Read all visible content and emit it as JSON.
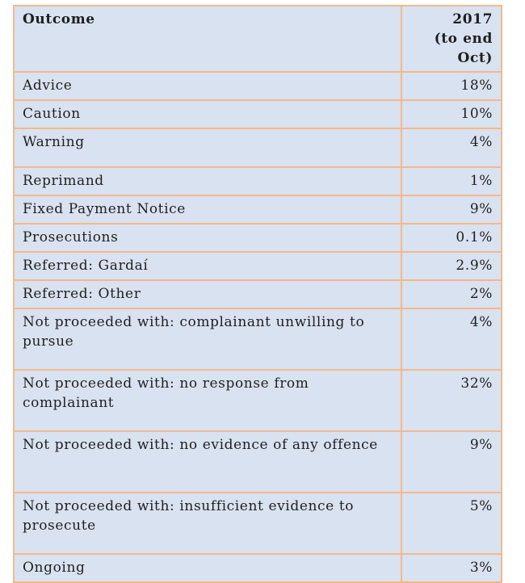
{
  "table": {
    "header": {
      "outcome": "Outcome",
      "year_lines": [
        "2017",
        "(to end",
        "Oct)"
      ]
    },
    "rows": [
      {
        "label": "Advice",
        "value": "18%"
      },
      {
        "label": "Caution",
        "value": "10%"
      },
      {
        "label": "Warning",
        "value": "4%"
      },
      {
        "label": "Reprimand",
        "value": "1%"
      },
      {
        "label": "Fixed Payment Notice",
        "value": "9%"
      },
      {
        "label": "Prosecutions",
        "value": "0.1%"
      },
      {
        "label": "Referred: Gardaí",
        "value": "2.9%"
      },
      {
        "label": "Referred: Other",
        "value": "2%"
      },
      {
        "label": "Not proceeded with: complainant unwilling to pursue",
        "value": "4%"
      },
      {
        "label": "Not proceeded with: no response from complainant",
        "value": "32%"
      },
      {
        "label": "Not proceeded with: no evidence of any offence",
        "value": "9%"
      },
      {
        "label": "Not proceeded with: insufficient evidence to prosecute",
        "value": "5%"
      },
      {
        "label": "Ongoing",
        "value": "3%"
      }
    ]
  }
}
